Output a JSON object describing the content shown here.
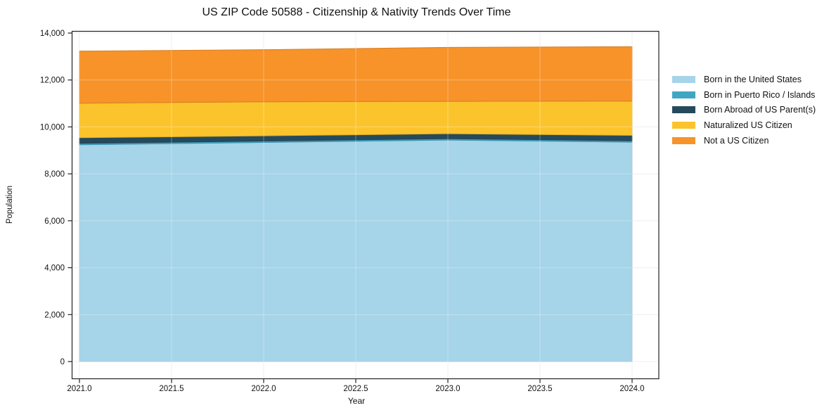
{
  "chart_data": {
    "type": "area",
    "stacked": true,
    "title": "US ZIP Code 50588 - Citizenship & Nativity Trends Over Time",
    "xlabel": "Year",
    "ylabel": "Population",
    "x": [
      2021,
      2022,
      2023,
      2024
    ],
    "series": [
      {
        "name": "Born in the United States",
        "color": "#a6d4e8",
        "values": [
          9240,
          9340,
          9440,
          9350
        ]
      },
      {
        "name": "Born in Puerto Rico / Islands",
        "color": "#41a6c4",
        "values": [
          60,
          60,
          60,
          60
        ]
      },
      {
        "name": "Born Abroad of US Parent(s)",
        "color": "#264a5d",
        "values": [
          240,
          220,
          210,
          230
        ]
      },
      {
        "name": "Naturalized US Citizen",
        "color": "#fcc42c",
        "values": [
          1470,
          1450,
          1380,
          1460
        ]
      },
      {
        "name": "Not a US Citizen",
        "color": "#f79329",
        "values": [
          2220,
          2220,
          2300,
          2320
        ]
      }
    ],
    "xticks": [
      2021.0,
      2021.5,
      2022.0,
      2022.5,
      2023.0,
      2023.5,
      2024.0
    ],
    "xtick_labels": [
      "2021.0",
      "2021.5",
      "2022.0",
      "2022.5",
      "2023.0",
      "2023.5",
      "2024.0"
    ],
    "yticks": [
      0,
      2000,
      4000,
      6000,
      8000,
      10000,
      12000,
      14000
    ],
    "ytick_labels": [
      "0",
      "2,000",
      "4,000",
      "6,000",
      "8,000",
      "10,000",
      "12,000",
      "14,000"
    ],
    "xlim": [
      2020.96,
      2024.15
    ],
    "ylim": [
      -760,
      14100
    ],
    "grid": true,
    "legend_position": "right"
  }
}
